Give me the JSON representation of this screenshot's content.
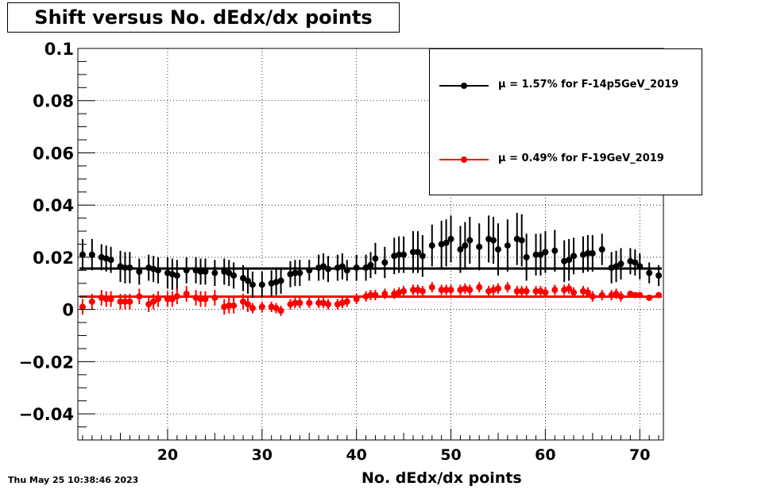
{
  "title": "Shift versus No. dEdx/dx points",
  "timestamp": "Thu May 25 10:38:46 2023",
  "chart_data": {
    "type": "scatter",
    "title": "Shift versus No. dEdx/dx points",
    "xlabel": "No. dEdx/dx points",
    "ylabel": "",
    "xlim": [
      10.5,
      72.5
    ],
    "ylim": [
      -0.05,
      0.1
    ],
    "xticks": [
      "20",
      "30",
      "40",
      "50",
      "60",
      "70"
    ],
    "yticks": [
      "0.1",
      "0.08",
      "0.06",
      "0.04",
      "0.02",
      "0",
      "−0.02",
      "−0.04"
    ],
    "grid": true,
    "legend_position": "top-right",
    "x": [
      11,
      12,
      13,
      13.5,
      14,
      15,
      15.5,
      16,
      17,
      18,
      18.5,
      19,
      20,
      20.5,
      21,
      22,
      23,
      23.5,
      24,
      25,
      26,
      26.5,
      27,
      28,
      28.5,
      29,
      30,
      31,
      31.5,
      32,
      33,
      33.5,
      34,
      35,
      36,
      36.5,
      37,
      38,
      38.5,
      39,
      40,
      41,
      41.5,
      42,
      43,
      44,
      44.5,
      45,
      46,
      46.5,
      47,
      48,
      49,
      49.5,
      50,
      51,
      51.5,
      52,
      53,
      54,
      54.5,
      55,
      56,
      57,
      57.5,
      58,
      59,
      59.5,
      60,
      61,
      62,
      62.5,
      63,
      64,
      64.5,
      65,
      66,
      67,
      67.5,
      68,
      69,
      69.5,
      70,
      71,
      72
    ],
    "series": [
      {
        "name": "μ =  1.57% for F-14p5GeV_2019",
        "color": "#000000",
        "fit": 0.0157,
        "values": [
          0.021,
          0.021,
          0.02,
          0.0195,
          0.019,
          0.0165,
          0.016,
          0.016,
          0.0145,
          0.016,
          0.0155,
          0.015,
          0.014,
          0.0135,
          0.013,
          0.015,
          0.015,
          0.0145,
          0.0145,
          0.014,
          0.0145,
          0.014,
          0.013,
          0.012,
          0.011,
          0.0095,
          0.0095,
          0.01,
          0.0105,
          0.011,
          0.0135,
          0.014,
          0.014,
          0.015,
          0.016,
          0.0165,
          0.0155,
          0.016,
          0.0165,
          0.015,
          0.016,
          0.016,
          0.017,
          0.0195,
          0.018,
          0.0205,
          0.021,
          0.021,
          0.022,
          0.022,
          0.0205,
          0.0245,
          0.025,
          0.0255,
          0.027,
          0.023,
          0.0245,
          0.0265,
          0.024,
          0.027,
          0.0265,
          0.023,
          0.0245,
          0.027,
          0.0265,
          0.02,
          0.021,
          0.021,
          0.022,
          0.0225,
          0.0185,
          0.019,
          0.0205,
          0.021,
          0.0215,
          0.0215,
          0.023,
          0.016,
          0.0165,
          0.0175,
          0.0185,
          0.018,
          0.0165,
          0.014,
          0.013
        ],
        "errors": [
          0.006,
          0.006,
          0.005,
          0.005,
          0.005,
          0.006,
          0.006,
          0.006,
          0.005,
          0.005,
          0.005,
          0.005,
          0.006,
          0.006,
          0.006,
          0.005,
          0.005,
          0.005,
          0.005,
          0.005,
          0.005,
          0.005,
          0.005,
          0.005,
          0.005,
          0.005,
          0.005,
          0.005,
          0.005,
          0.005,
          0.005,
          0.005,
          0.005,
          0.004,
          0.005,
          0.005,
          0.005,
          0.005,
          0.005,
          0.004,
          0.005,
          0.005,
          0.005,
          0.006,
          0.006,
          0.007,
          0.007,
          0.007,
          0.008,
          0.008,
          0.008,
          0.008,
          0.009,
          0.009,
          0.009,
          0.009,
          0.009,
          0.009,
          0.009,
          0.009,
          0.009,
          0.01,
          0.01,
          0.01,
          0.01,
          0.009,
          0.008,
          0.008,
          0.008,
          0.008,
          0.008,
          0.008,
          0.007,
          0.007,
          0.007,
          0.007,
          0.006,
          0.006,
          0.006,
          0.006,
          0.005,
          0.005,
          0.005,
          0.004,
          0.004
        ]
      },
      {
        "name": "μ =  0.49% for F-19GeV_2019",
        "color": "#ff0000",
        "fit": 0.0049,
        "values": [
          0.001,
          0.003,
          0.0045,
          0.004,
          0.004,
          0.003,
          0.003,
          0.003,
          0.005,
          0.002,
          0.003,
          0.004,
          0.004,
          0.004,
          0.005,
          0.006,
          0.0045,
          0.004,
          0.004,
          0.0045,
          0.001,
          0.0015,
          0.0015,
          0.003,
          0.002,
          0.0005,
          0.001,
          0.001,
          0.0005,
          -0.0005,
          0.002,
          0.0025,
          0.0025,
          0.0025,
          0.0025,
          0.0025,
          0.002,
          0.002,
          0.0025,
          0.003,
          0.004,
          0.005,
          0.0055,
          0.0055,
          0.006,
          0.006,
          0.0065,
          0.007,
          0.0075,
          0.0075,
          0.007,
          0.0085,
          0.0075,
          0.0075,
          0.0075,
          0.0075,
          0.008,
          0.0075,
          0.0085,
          0.007,
          0.0075,
          0.008,
          0.0085,
          0.007,
          0.007,
          0.007,
          0.007,
          0.007,
          0.0065,
          0.0075,
          0.0075,
          0.008,
          0.0065,
          0.007,
          0.0065,
          0.005,
          0.0055,
          0.0055,
          0.006,
          0.005,
          0.006,
          0.0055,
          0.0055,
          0.0045,
          0.0055
        ],
        "errors": [
          0.003,
          0.003,
          0.003,
          0.003,
          0.003,
          0.003,
          0.003,
          0.003,
          0.003,
          0.003,
          0.003,
          0.003,
          0.003,
          0.003,
          0.003,
          0.003,
          0.003,
          0.003,
          0.003,
          0.003,
          0.003,
          0.003,
          0.003,
          0.003,
          0.003,
          0.002,
          0.002,
          0.002,
          0.002,
          0.002,
          0.002,
          0.002,
          0.002,
          0.002,
          0.002,
          0.002,
          0.002,
          0.002,
          0.002,
          0.002,
          0.002,
          0.002,
          0.002,
          0.002,
          0.002,
          0.002,
          0.002,
          0.002,
          0.002,
          0.002,
          0.002,
          0.002,
          0.002,
          0.002,
          0.002,
          0.002,
          0.002,
          0.002,
          0.002,
          0.002,
          0.002,
          0.002,
          0.002,
          0.002,
          0.002,
          0.002,
          0.002,
          0.002,
          0.002,
          0.002,
          0.002,
          0.002,
          0.002,
          0.002,
          0.002,
          0.002,
          0.002,
          0.002,
          0.002,
          0.002,
          0.001,
          0.001,
          0.001,
          0.001,
          0.001
        ]
      }
    ]
  }
}
